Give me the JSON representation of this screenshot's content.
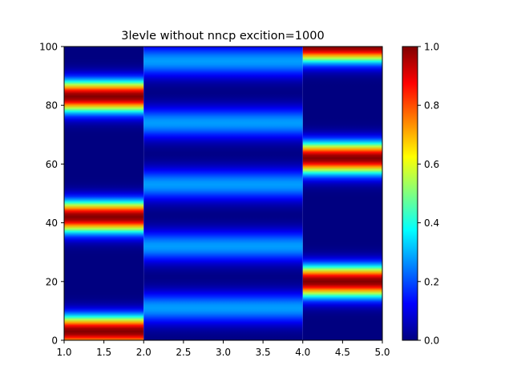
{
  "chart_data": {
    "type": "heatmap",
    "title": "3levle without nncp excition=1000",
    "xlabel": "",
    "ylabel": "",
    "xlim": [
      1.0,
      5.0
    ],
    "ylim": [
      0,
      100
    ],
    "x_ticks": [
      "1.0",
      "1.5",
      "2.0",
      "2.5",
      "3.0",
      "3.5",
      "4.0",
      "4.5",
      "5.0"
    ],
    "y_ticks": [
      "0",
      "20",
      "40",
      "60",
      "80",
      "100"
    ],
    "colormap": "jet",
    "colorbar": {
      "range": [
        0.0,
        1.0
      ],
      "ticks": [
        "0.0",
        "0.2",
        "0.4",
        "0.6",
        "0.8",
        "1.0"
      ]
    },
    "columns": [
      {
        "x_range": [
          1.0,
          2.0
        ],
        "description_values": {
          "peaks_y": [
            3,
            42,
            83
          ],
          "peak_value": 1.0
        }
      },
      {
        "x_range": [
          2.0,
          4.0
        ],
        "description_values": {
          "peaks_y": [
            11,
            32,
            53,
            74,
            95
          ],
          "peak_value": 0.28
        }
      },
      {
        "x_range": [
          4.0,
          5.0
        ],
        "description_values": {
          "peaks_y": [
            20,
            62,
            100
          ],
          "peak_value": 1.0
        }
      }
    ],
    "grid": false,
    "legend": "none"
  }
}
